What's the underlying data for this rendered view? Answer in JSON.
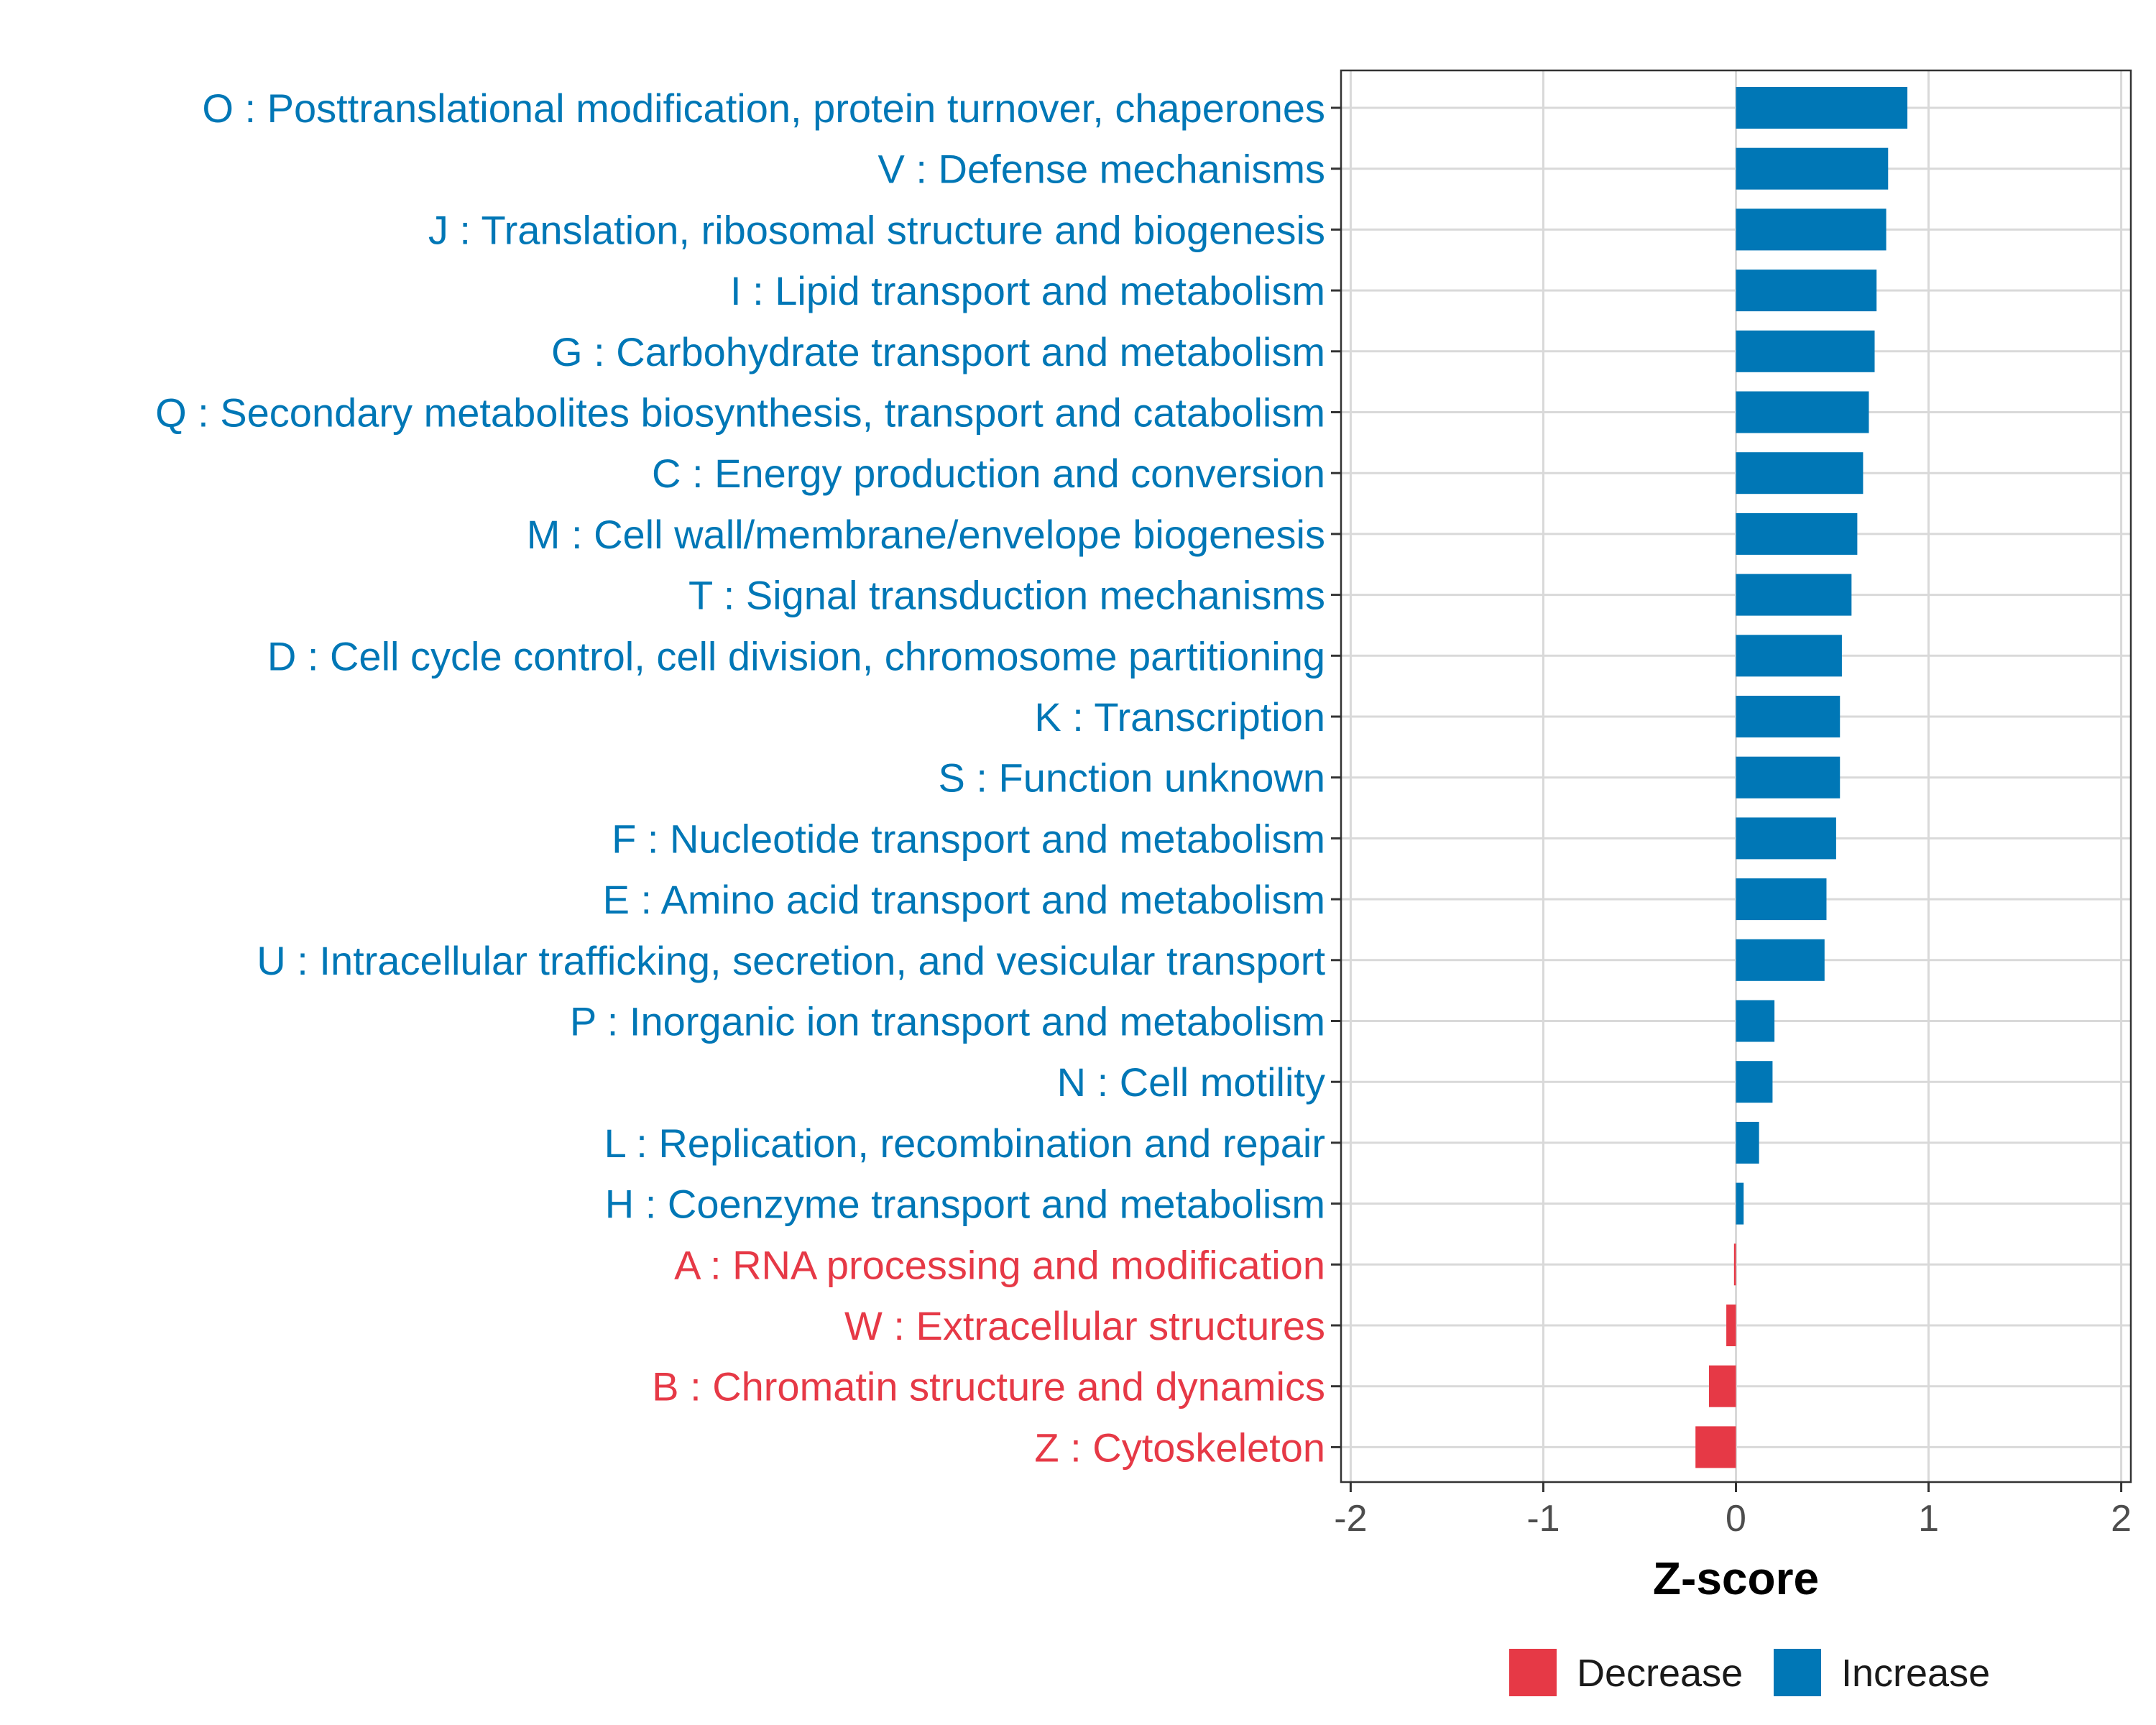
{
  "chart_data": {
    "type": "bar",
    "orientation": "horizontal",
    "xlabel": "Z-score",
    "ylabel": "",
    "xlim": [
      -2.05,
      2.05
    ],
    "xticks": [
      -2,
      -1,
      0,
      1,
      2
    ],
    "xtick_labels": [
      "-2",
      "-1",
      "0",
      "1",
      "2"
    ],
    "grid": true,
    "colors": {
      "Decrease": "#E63946",
      "Increase": "#0077B6"
    },
    "categories": [
      "O : Posttranslational modification, protein turnover, chaperones",
      "V : Defense mechanisms",
      "J : Translation, ribosomal structure and biogenesis",
      "I : Lipid transport and metabolism",
      "G : Carbohydrate transport and metabolism",
      "Q : Secondary metabolites biosynthesis, transport and catabolism",
      "C : Energy production and conversion",
      "M : Cell wall/membrane/envelope biogenesis",
      "T : Signal transduction mechanisms",
      "D : Cell cycle control, cell division, chromosome partitioning",
      "K : Transcription",
      "S : Function unknown",
      "F : Nucleotide transport and metabolism",
      "E : Amino acid transport and metabolism",
      "U : Intracellular trafficking, secretion, and vesicular transport",
      "P : Inorganic ion transport and metabolism",
      "N : Cell motility",
      "L : Replication, recombination and repair",
      "H : Coenzyme transport and metabolism",
      "A : RNA processing and modification",
      "W : Extracellular structures",
      "B : Chromatin structure and dynamics",
      "Z : Cytoskeleton"
    ],
    "values": [
      0.89,
      0.79,
      0.78,
      0.73,
      0.72,
      0.69,
      0.66,
      0.63,
      0.6,
      0.55,
      0.54,
      0.54,
      0.52,
      0.47,
      0.46,
      0.2,
      0.19,
      0.12,
      0.04,
      -0.01,
      -0.05,
      -0.14,
      -0.21
    ],
    "groups": [
      "Increase",
      "Increase",
      "Increase",
      "Increase",
      "Increase",
      "Increase",
      "Increase",
      "Increase",
      "Increase",
      "Increase",
      "Increase",
      "Increase",
      "Increase",
      "Increase",
      "Increase",
      "Increase",
      "Increase",
      "Increase",
      "Increase",
      "Decrease",
      "Decrease",
      "Decrease",
      "Decrease"
    ],
    "legend": {
      "position": "bottom",
      "items": [
        {
          "label": "Decrease",
          "color": "#E63946"
        },
        {
          "label": "Increase",
          "color": "#0077B6"
        }
      ]
    }
  }
}
